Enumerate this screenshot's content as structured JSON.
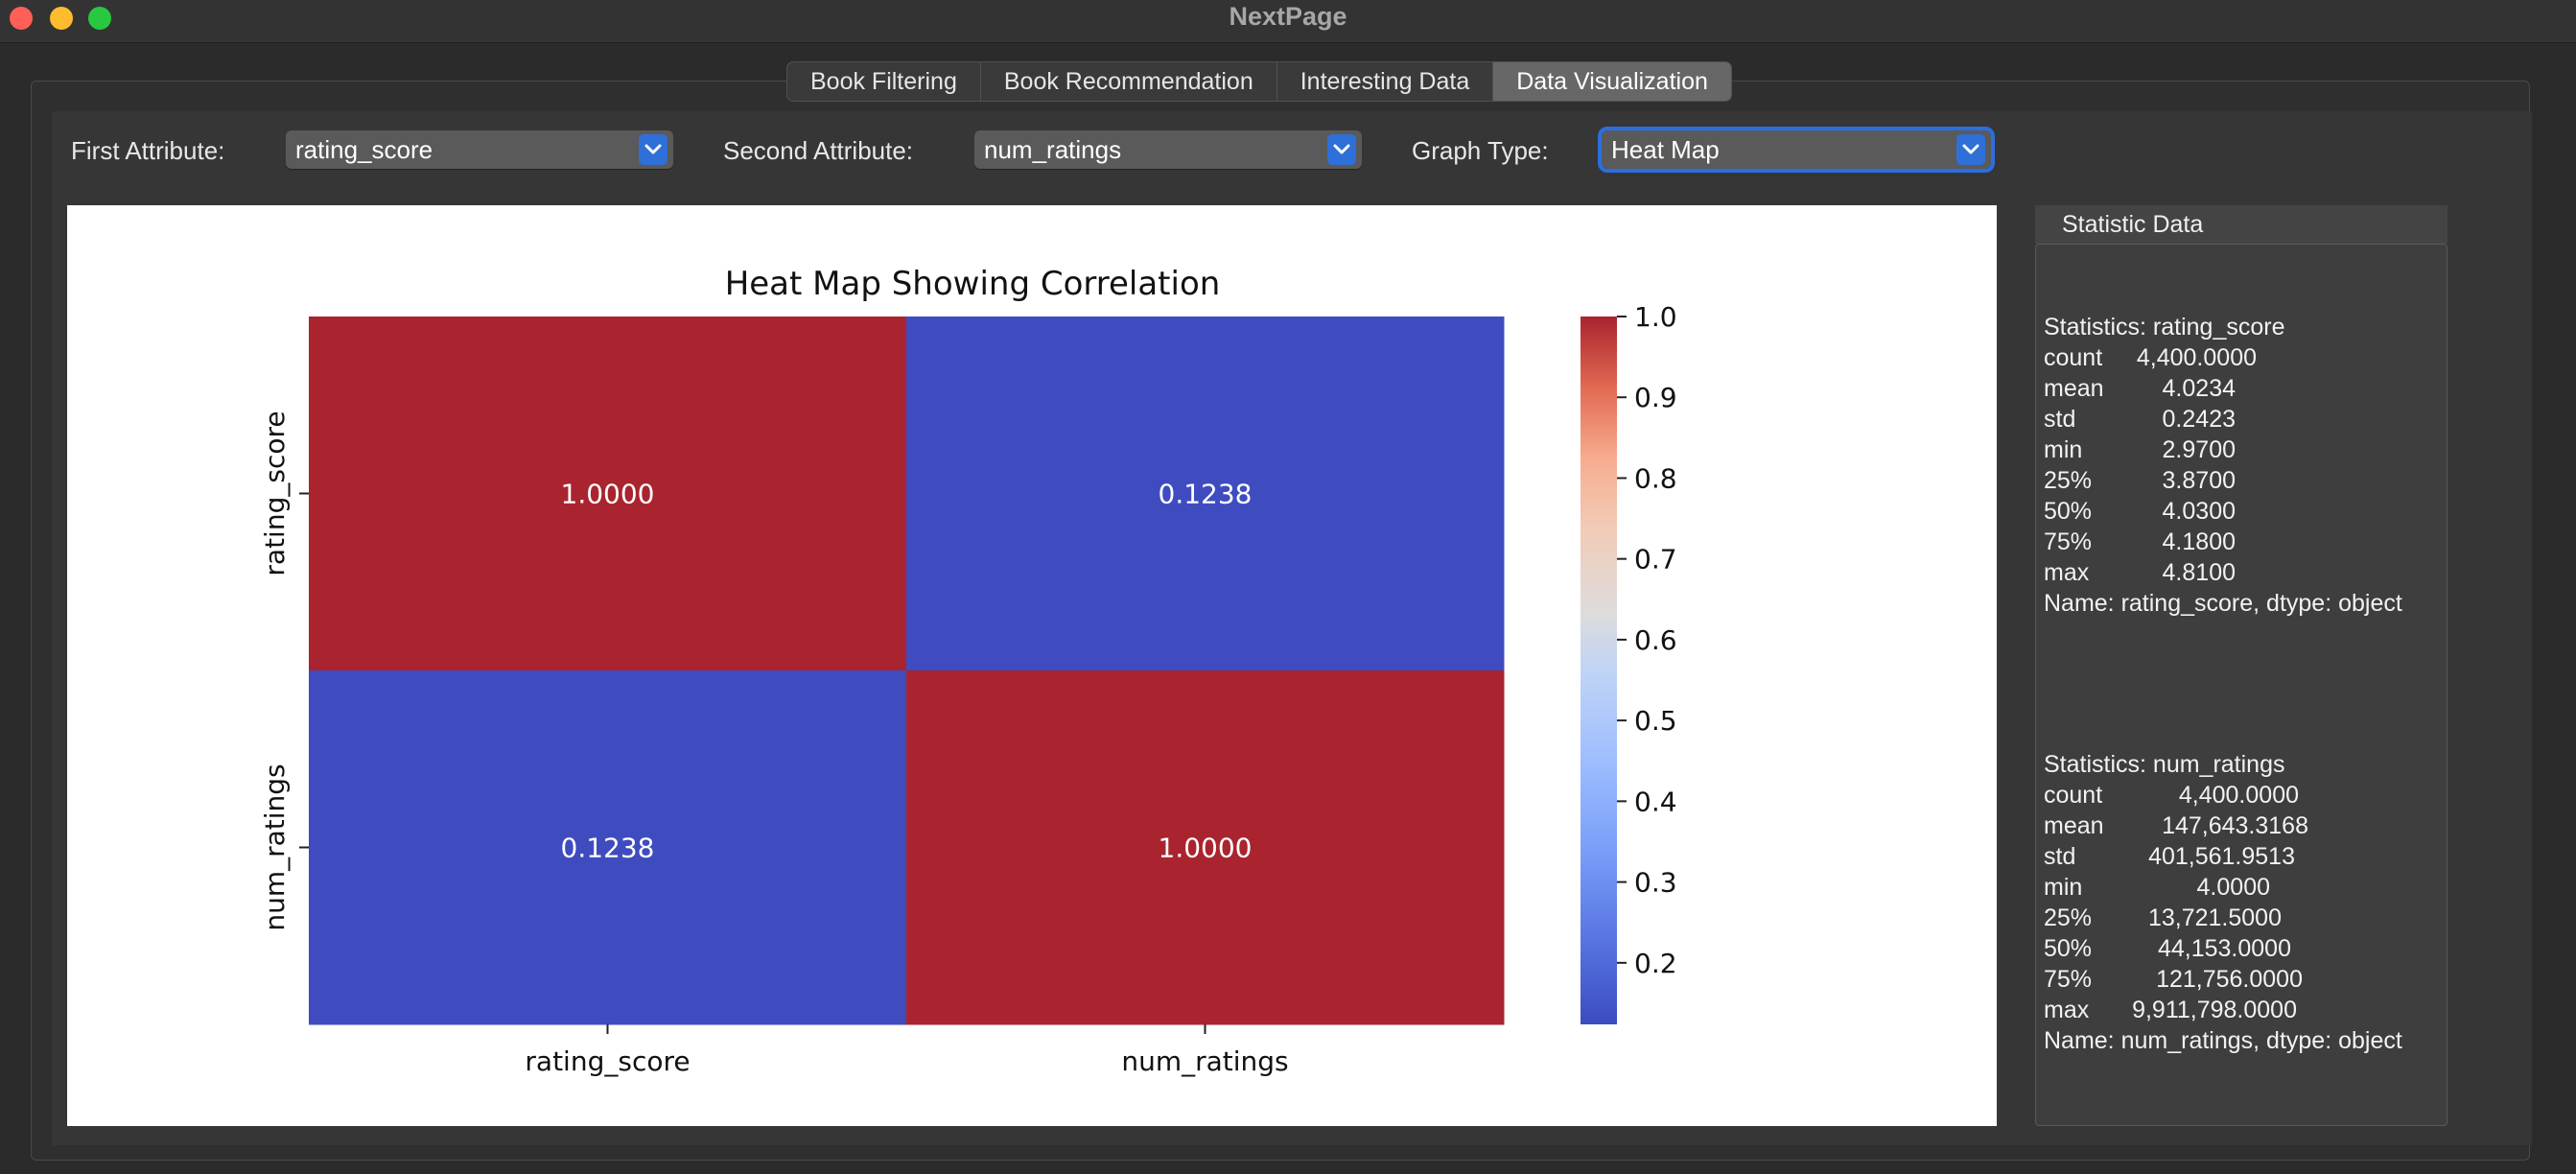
{
  "window": {
    "title": "NextPage"
  },
  "tabs": [
    {
      "label": "Book Filtering",
      "active": false
    },
    {
      "label": "Book Recommendation",
      "active": false
    },
    {
      "label": "Interesting Data",
      "active": false
    },
    {
      "label": "Data Visualization",
      "active": true
    }
  ],
  "controls": {
    "first_attr_label": "First Attribute:",
    "first_attr_value": "rating_score",
    "second_attr_label": "Second Attribute:",
    "second_attr_value": "num_ratings",
    "graph_type_label": "Graph Type:",
    "graph_type_value": "Heat Map"
  },
  "chart_data": {
    "type": "heatmap",
    "title": "Heat Map Showing Correlation",
    "row_labels": [
      "rating_score",
      "num_ratings"
    ],
    "col_labels": [
      "rating_score",
      "num_ratings"
    ],
    "matrix": [
      [
        1.0,
        0.1238
      ],
      [
        0.1238,
        1.0
      ]
    ],
    "cell_labels": [
      [
        "1.0000",
        "0.1238"
      ],
      [
        "0.1238",
        "1.0000"
      ]
    ],
    "colormap": "coolwarm",
    "colorbar": {
      "min": 0.1238,
      "max": 1.0,
      "ticks": [
        1.0,
        0.9,
        0.8,
        0.7,
        0.6,
        0.5,
        0.4,
        0.3,
        0.2
      ],
      "tick_labels": [
        "1.0",
        "0.9",
        "0.8",
        "0.7",
        "0.6",
        "0.5",
        "0.4",
        "0.3",
        "0.2"
      ]
    },
    "colors": {
      "high": "#a9242e",
      "low": "#3f4cc0"
    }
  },
  "statistics": {
    "header": "Statistic Data",
    "blocks": [
      {
        "title": "Statistics: rating_score",
        "rows": [
          {
            "key": "count",
            "value": "4,400.0000"
          },
          {
            "key": "mean",
            "value": "4.0234"
          },
          {
            "key": "std",
            "value": "0.2423"
          },
          {
            "key": "min",
            "value": "2.9700"
          },
          {
            "key": "25%",
            "value": "3.8700"
          },
          {
            "key": "50%",
            "value": "4.0300"
          },
          {
            "key": "75%",
            "value": "4.1800"
          },
          {
            "key": "max",
            "value": "4.8100"
          }
        ],
        "footer": "Name: rating_score, dtype: object"
      },
      {
        "title": "Statistics: num_ratings",
        "rows": [
          {
            "key": "count",
            "value": "4,400.0000"
          },
          {
            "key": "mean",
            "value": "147,643.3168"
          },
          {
            "key": "std",
            "value": "401,561.9513"
          },
          {
            "key": "min",
            "value": "4.0000"
          },
          {
            "key": "25%",
            "value": "13,721.5000"
          },
          {
            "key": "50%",
            "value": "44,153.0000"
          },
          {
            "key": "75%",
            "value": "121,756.0000"
          },
          {
            "key": "max",
            "value": "9,911,798.0000"
          }
        ],
        "footer": "Name: num_ratings, dtype: object"
      }
    ]
  }
}
